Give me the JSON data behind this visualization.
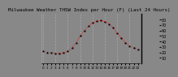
{
  "title": "Milwaukee Weather THSW Index per Hour (F) (Last 24 Hours)",
  "background_color": "#888888",
  "plot_bg_color": "#888888",
  "line_color": "#ff0000",
  "marker_color": "#000000",
  "grid_color": "#aaaaaa",
  "text_color": "#000000",
  "hours": [
    0,
    1,
    2,
    3,
    4,
    5,
    6,
    7,
    8,
    9,
    10,
    11,
    12,
    13,
    14,
    15,
    16,
    17,
    18,
    19,
    20,
    21,
    22,
    23
  ],
  "values": [
    22,
    20,
    19,
    18,
    18,
    19,
    22,
    28,
    38,
    50,
    60,
    68,
    74,
    77,
    78,
    76,
    72,
    65,
    55,
    46,
    38,
    32,
    28,
    25
  ],
  "ylim": [
    0,
    90
  ],
  "yticks": [
    10,
    20,
    30,
    40,
    50,
    60,
    70,
    80
  ],
  "ylabel_fontsize": 3.5,
  "xlabel_fontsize": 3.0,
  "title_fontsize": 4.2,
  "grid_x_positions": [
    0,
    3,
    6,
    9,
    12,
    15,
    18,
    21
  ]
}
